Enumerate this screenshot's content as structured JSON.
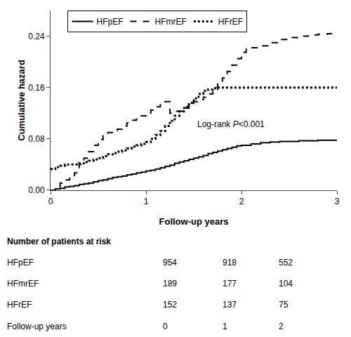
{
  "chart_data": {
    "type": "step",
    "xlabel": "Follow-up years",
    "ylabel": "Cumulative hazard",
    "xlim": [
      0,
      3
    ],
    "ylim": [
      0,
      0.28
    ],
    "xticks": [
      0,
      1,
      2,
      3
    ],
    "yticks": [
      {
        "value": 0,
        "label": "0.00"
      },
      0.08,
      0.16,
      0.24
    ],
    "grid": false,
    "legend": "upper left",
    "series": [
      {
        "name": "HFpEF",
        "color": "#000000",
        "line_style": "solid",
        "x": [
          0,
          0.05,
          0.1,
          0.15,
          0.2,
          0.25,
          0.3,
          0.35,
          0.4,
          0.45,
          0.5,
          0.55,
          0.6,
          0.65,
          0.7,
          0.75,
          0.8,
          0.85,
          0.9,
          0.95,
          1.0,
          1.05,
          1.1,
          1.15,
          1.2,
          1.25,
          1.3,
          1.35,
          1.4,
          1.45,
          1.5,
          1.55,
          1.6,
          1.65,
          1.7,
          1.75,
          1.8,
          1.85,
          1.9,
          1.95,
          2.0,
          2.1,
          2.2,
          2.3,
          2.4,
          2.5,
          2.6,
          2.7,
          2.8,
          2.9,
          3.0
        ],
        "values": [
          0.0,
          0.002,
          0.003,
          0.005,
          0.006,
          0.007,
          0.009,
          0.01,
          0.011,
          0.013,
          0.015,
          0.016,
          0.018,
          0.02,
          0.021,
          0.022,
          0.024,
          0.025,
          0.027,
          0.028,
          0.03,
          0.031,
          0.033,
          0.035,
          0.037,
          0.039,
          0.042,
          0.044,
          0.046,
          0.048,
          0.05,
          0.052,
          0.054,
          0.057,
          0.059,
          0.061,
          0.063,
          0.065,
          0.067,
          0.069,
          0.07,
          0.072,
          0.074,
          0.075,
          0.076,
          0.076,
          0.077,
          0.077,
          0.078,
          0.078,
          0.078
        ]
      },
      {
        "name": "HFmrEF",
        "color": "#000000",
        "line_style": "dashed",
        "x": [
          0,
          0.05,
          0.1,
          0.15,
          0.2,
          0.25,
          0.3,
          0.35,
          0.4,
          0.45,
          0.5,
          0.55,
          0.6,
          0.65,
          0.7,
          0.75,
          0.8,
          0.85,
          0.9,
          0.95,
          1.0,
          1.05,
          1.1,
          1.15,
          1.2,
          1.25,
          1.3,
          1.4,
          1.45,
          1.5,
          1.55,
          1.6,
          1.65,
          1.7,
          1.75,
          1.8,
          1.85,
          1.9,
          1.95,
          2.0,
          2.05,
          2.1,
          2.2,
          2.3,
          2.4,
          2.5,
          2.6,
          2.7,
          2.8,
          2.9,
          3.0
        ],
        "values": [
          0.0,
          0.005,
          0.011,
          0.016,
          0.021,
          0.027,
          0.04,
          0.05,
          0.06,
          0.07,
          0.079,
          0.085,
          0.09,
          0.093,
          0.095,
          0.1,
          0.105,
          0.109,
          0.113,
          0.116,
          0.12,
          0.125,
          0.13,
          0.133,
          0.138,
          0.12,
          0.123,
          0.128,
          0.135,
          0.138,
          0.141,
          0.145,
          0.15,
          0.157,
          0.165,
          0.175,
          0.185,
          0.195,
          0.205,
          0.215,
          0.22,
          0.222,
          0.225,
          0.23,
          0.235,
          0.238,
          0.24,
          0.242,
          0.243,
          0.244,
          0.244
        ]
      },
      {
        "name": "HFrEF",
        "color": "#000000",
        "line_style": "dotted",
        "x": [
          0,
          0.05,
          0.1,
          0.15,
          0.2,
          0.25,
          0.3,
          0.35,
          0.4,
          0.45,
          0.5,
          0.55,
          0.6,
          0.65,
          0.7,
          0.75,
          0.8,
          0.85,
          0.9,
          0.95,
          1.0,
          1.05,
          1.1,
          1.15,
          1.2,
          1.25,
          1.3,
          1.35,
          1.4,
          1.45,
          1.5,
          1.55,
          1.6,
          1.65,
          1.7,
          1.75,
          1.8,
          1.85,
          1.9,
          1.95,
          2.0,
          2.1,
          2.2,
          2.3,
          2.4,
          2.5,
          2.6,
          2.7,
          2.8,
          2.9,
          3.0
        ],
        "values": [
          0.033,
          0.036,
          0.038,
          0.04,
          0.04,
          0.04,
          0.042,
          0.044,
          0.046,
          0.048,
          0.05,
          0.053,
          0.056,
          0.058,
          0.06,
          0.062,
          0.065,
          0.068,
          0.07,
          0.072,
          0.075,
          0.08,
          0.086,
          0.092,
          0.1,
          0.108,
          0.116,
          0.123,
          0.13,
          0.136,
          0.143,
          0.15,
          0.155,
          0.157,
          0.159,
          0.16,
          0.16,
          0.16,
          0.16,
          0.16,
          0.16,
          0.16,
          0.16,
          0.16,
          0.16,
          0.16,
          0.16,
          0.16,
          0.16,
          0.16,
          0.16
        ]
      }
    ],
    "annotations": [
      {
        "x": 1.52,
        "y": 0.093,
        "parts": [
          {
            "text": "Log-rank "
          },
          {
            "text": "P",
            "style": "italic"
          },
          {
            "text": "<0.001"
          }
        ]
      }
    ],
    "table": {
      "title": "Number of patients at risk",
      "rows": [
        {
          "name": "HFpEF",
          "values": [
            954,
            918,
            552
          ]
        },
        {
          "name": "HFmrEF",
          "values": [
            189,
            177,
            104
          ]
        },
        {
          "name": "HFrEF",
          "values": [
            152,
            137,
            75
          ]
        },
        {
          "name": "Follow-up years",
          "values": [
            0,
            1,
            2
          ]
        }
      ]
    }
  }
}
